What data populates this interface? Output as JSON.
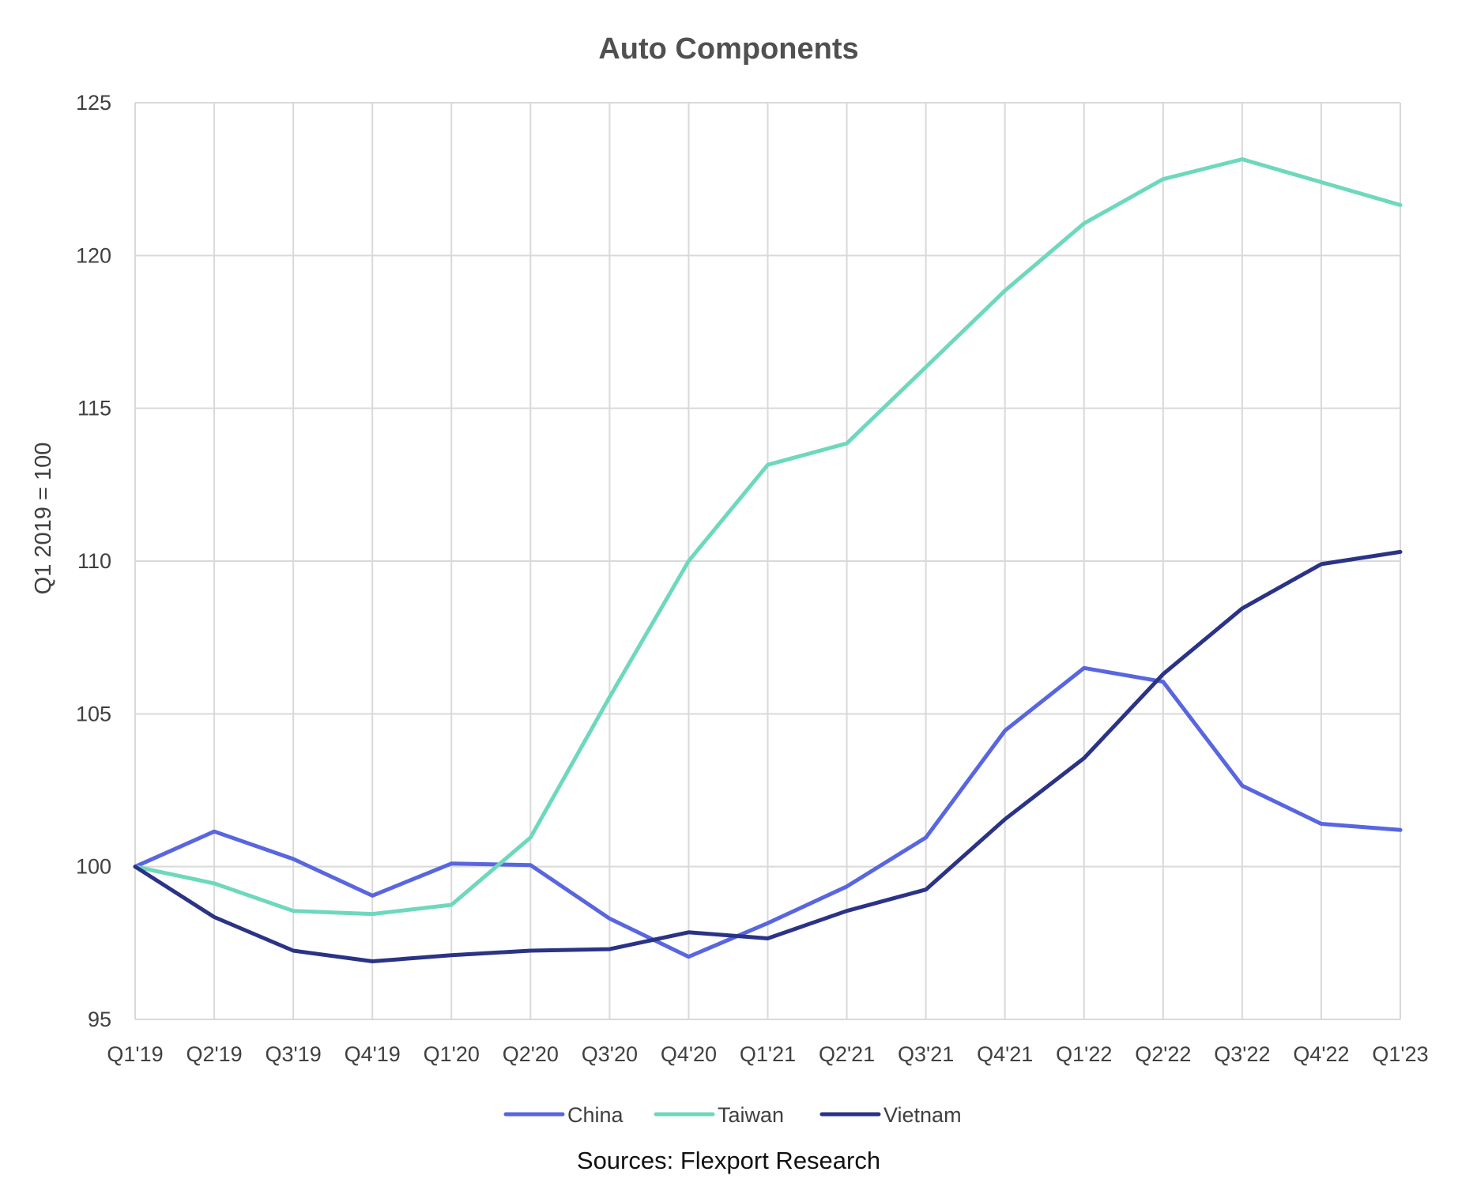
{
  "chart_data": {
    "type": "line",
    "title": "Auto Components",
    "ylabel": "Q1 2019 = 100",
    "xlabel": "",
    "ylim": [
      95,
      125
    ],
    "yticks": [
      95,
      100,
      105,
      110,
      115,
      120,
      125
    ],
    "categories": [
      "Q1'19",
      "Q2'19",
      "Q3'19",
      "Q4'19",
      "Q1'20",
      "Q2'20",
      "Q3'20",
      "Q4'20",
      "Q1'21",
      "Q2'21",
      "Q3'21",
      "Q4'21",
      "Q1'22",
      "Q2'22",
      "Q3'22",
      "Q4'22",
      "Q1'23"
    ],
    "grid": true,
    "legend_position": "bottom",
    "series": [
      {
        "name": "China",
        "color": "#5866e0",
        "values": [
          100,
          101.15,
          100.25,
          99.05,
          100.1,
          100.05,
          98.3,
          97.05,
          98.15,
          99.35,
          100.95,
          104.45,
          106.5,
          106.05,
          102.65,
          101.4,
          101.2
        ]
      },
      {
        "name": "Taiwan",
        "color": "#6ed8bd",
        "values": [
          100,
          99.45,
          98.55,
          98.45,
          98.75,
          100.95,
          105.55,
          110.0,
          113.15,
          113.85,
          116.35,
          118.85,
          121.05,
          122.5,
          123.15,
          122.4,
          121.65
        ]
      },
      {
        "name": "Vietnam",
        "color": "#2b3386",
        "values": [
          100,
          98.35,
          97.25,
          96.9,
          97.1,
          97.25,
          97.3,
          97.85,
          97.65,
          98.55,
          99.25,
          101.55,
          103.55,
          106.3,
          108.45,
          109.9,
          110.3
        ]
      }
    ]
  },
  "footer": {
    "source_text": "Sources: Flexport Research"
  }
}
